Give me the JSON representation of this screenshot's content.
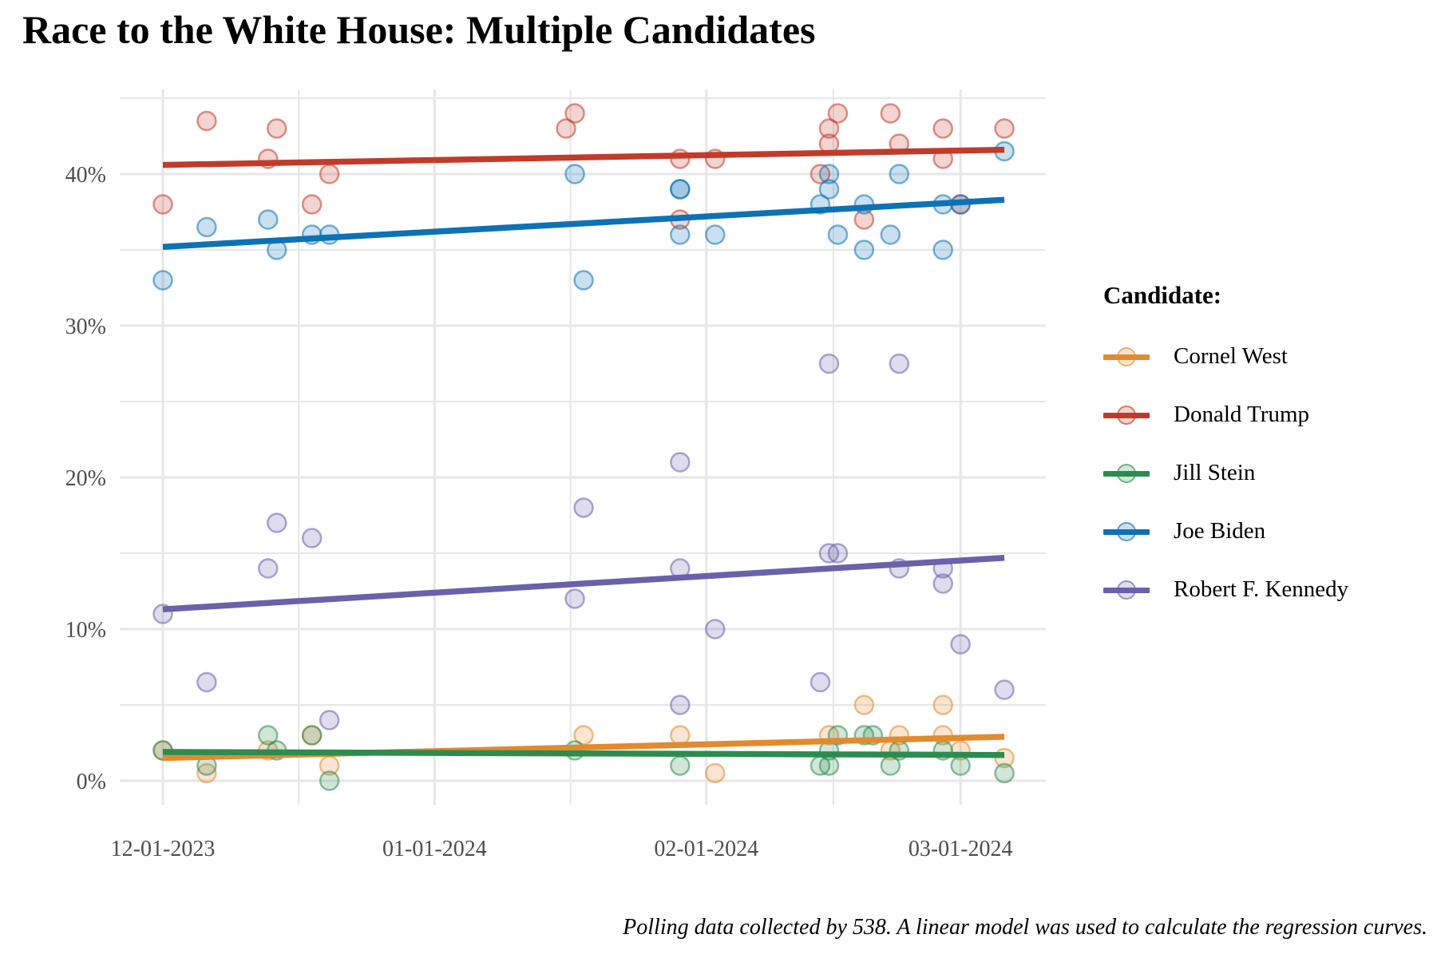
{
  "title": "Race to the White House: Multiple Candidates",
  "caption": "Polling data collected by 538. A linear model was used to calculate the regression curves.",
  "legend": {
    "title": "Candidate:",
    "items": [
      {
        "label": "Cornel West",
        "color": "#E28A2E"
      },
      {
        "label": "Donald Trump",
        "color": "#C23B2A"
      },
      {
        "label": "Jill Stein",
        "color": "#2E8B50"
      },
      {
        "label": "Joe Biden",
        "color": "#0D72B5"
      },
      {
        "label": "Robert F. Kennedy",
        "color": "#6A61AB"
      }
    ]
  },
  "chart_data": {
    "type": "scatter",
    "title": "Race to the White House: Multiple Candidates",
    "xlabel": "",
    "ylabel": "",
    "x_axis": {
      "unit": "days since 12-01-2023",
      "range": [
        0,
        100.5
      ],
      "major_ticks": [
        {
          "label": "12-01-2023",
          "day": 0
        },
        {
          "label": "01-01-2024",
          "day": 31
        },
        {
          "label": "02-01-2024",
          "day": 62
        },
        {
          "label": "03-01-2024",
          "day": 91
        }
      ],
      "minor_days": [
        15.5,
        46.5,
        76.5
      ]
    },
    "y_axis": {
      "unit": "percent",
      "range": [
        0,
        45.5
      ],
      "major_ticks": [
        {
          "label": "0%",
          "pct": 0
        },
        {
          "label": "10%",
          "pct": 10
        },
        {
          "label": "20%",
          "pct": 20
        },
        {
          "label": "30%",
          "pct": 30
        },
        {
          "label": "40%",
          "pct": 40
        }
      ],
      "minor_pcts": [
        5,
        15,
        25,
        35,
        45
      ]
    },
    "grid": "on",
    "legend_position": "right",
    "series": [
      {
        "name": "Cornel West",
        "color": "#E28A2E",
        "points": [
          [
            0,
            2
          ],
          [
            5,
            0.5
          ],
          [
            12,
            2
          ],
          [
            17,
            3
          ],
          [
            19,
            1
          ],
          [
            48,
            3
          ],
          [
            59,
            3
          ],
          [
            63,
            0.5
          ],
          [
            76,
            3
          ],
          [
            80,
            5
          ],
          [
            83,
            2
          ],
          [
            84,
            3
          ],
          [
            89,
            5
          ],
          [
            89,
            3
          ],
          [
            91,
            2
          ],
          [
            96,
            1.5
          ]
        ],
        "trend": [
          [
            0,
            1.5
          ],
          [
            96,
            2.9
          ]
        ]
      },
      {
        "name": "Donald Trump",
        "color": "#C23B2A",
        "points": [
          [
            0,
            38
          ],
          [
            5,
            43.5
          ],
          [
            12,
            41
          ],
          [
            13,
            43
          ],
          [
            17,
            38
          ],
          [
            19,
            40
          ],
          [
            46,
            43
          ],
          [
            47,
            44
          ],
          [
            59,
            41
          ],
          [
            59,
            37
          ],
          [
            63,
            41
          ],
          [
            75,
            40
          ],
          [
            76,
            42
          ],
          [
            76,
            43
          ],
          [
            77,
            44
          ],
          [
            80,
            37
          ],
          [
            83,
            44
          ],
          [
            84,
            42
          ],
          [
            89,
            43
          ],
          [
            89,
            41
          ],
          [
            91,
            38
          ],
          [
            96,
            43
          ]
        ],
        "trend": [
          [
            0,
            40.6
          ],
          [
            96,
            41.6
          ]
        ]
      },
      {
        "name": "Jill Stein",
        "color": "#2E8B50",
        "points": [
          [
            0,
            2
          ],
          [
            5,
            1
          ],
          [
            12,
            3
          ],
          [
            13,
            2
          ],
          [
            17,
            3
          ],
          [
            19,
            0
          ],
          [
            47,
            2
          ],
          [
            59,
            1
          ],
          [
            75,
            1
          ],
          [
            76,
            2
          ],
          [
            76,
            1
          ],
          [
            77,
            3
          ],
          [
            80,
            3
          ],
          [
            81,
            3
          ],
          [
            83,
            1
          ],
          [
            84,
            2
          ],
          [
            89,
            2
          ],
          [
            91,
            1
          ],
          [
            96,
            0.5
          ]
        ],
        "trend": [
          [
            0,
            1.9
          ],
          [
            96,
            1.7
          ]
        ]
      },
      {
        "name": "Joe Biden",
        "color": "#0D72B5",
        "points": [
          [
            0,
            33
          ],
          [
            5,
            36.5
          ],
          [
            12,
            37
          ],
          [
            13,
            35
          ],
          [
            17,
            36
          ],
          [
            19,
            36
          ],
          [
            47,
            40
          ],
          [
            48,
            33
          ],
          [
            59,
            39
          ],
          [
            59,
            39
          ],
          [
            59,
            36
          ],
          [
            63,
            36
          ],
          [
            75,
            38
          ],
          [
            76,
            40
          ],
          [
            76,
            39
          ],
          [
            77,
            36
          ],
          [
            80,
            38
          ],
          [
            80,
            35
          ],
          [
            83,
            36
          ],
          [
            84,
            40
          ],
          [
            89,
            38
          ],
          [
            89,
            35
          ],
          [
            91,
            38
          ],
          [
            96,
            41.5
          ]
        ],
        "trend": [
          [
            0,
            35.2
          ],
          [
            96,
            38.3
          ]
        ]
      },
      {
        "name": "Robert F. Kennedy",
        "color": "#6A61AB",
        "points": [
          [
            0,
            11
          ],
          [
            5,
            6.5
          ],
          [
            12,
            14
          ],
          [
            13,
            17
          ],
          [
            17,
            16
          ],
          [
            19,
            4
          ],
          [
            47,
            12
          ],
          [
            48,
            18
          ],
          [
            59,
            21
          ],
          [
            59,
            14
          ],
          [
            59,
            5
          ],
          [
            63,
            10
          ],
          [
            75,
            6.5
          ],
          [
            76,
            15
          ],
          [
            77,
            15
          ],
          [
            76,
            27.5
          ],
          [
            84,
            27.5
          ],
          [
            84,
            14
          ],
          [
            89,
            14
          ],
          [
            89,
            13
          ],
          [
            91,
            9
          ],
          [
            96,
            6
          ]
        ],
        "trend": [
          [
            0,
            11.3
          ],
          [
            96,
            14.7
          ]
        ]
      }
    ],
    "style": {
      "grid_color": "#E7E7E7",
      "axis_text_color": "#4D4D4D",
      "point_radius": 11.5,
      "point_fill_opacity": 0.22,
      "point_stroke_opacity": 0.55,
      "trend_width": 7.5
    }
  }
}
